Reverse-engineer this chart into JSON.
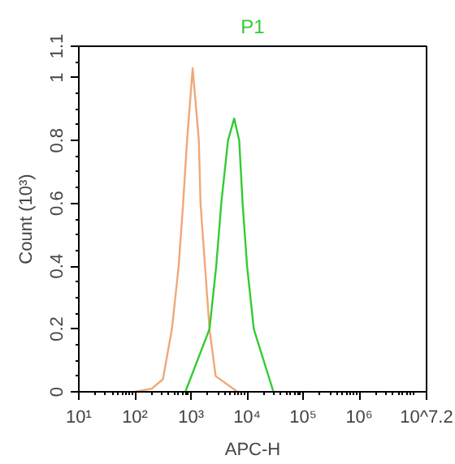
{
  "chart_data": {
    "type": "line",
    "xlabel": "APC-H",
    "ylabel": "Count (10³)",
    "log": "x",
    "xlim": [
      10,
      15848932
    ],
    "ylim": [
      0,
      1.1
    ],
    "xticks": [
      {
        "value": 10,
        "label": "10¹"
      },
      {
        "value": 100,
        "label": "10²"
      },
      {
        "value": 1000,
        "label": "10³"
      },
      {
        "value": 10000,
        "label": "10⁴"
      },
      {
        "value": 100000,
        "label": "10⁵"
      },
      {
        "value": 1000000,
        "label": "10⁶"
      },
      {
        "value": 15848932,
        "label": "10^7.2"
      }
    ],
    "yticks": [
      0,
      0.2,
      0.4,
      0.6,
      0.8,
      1,
      1.1
    ],
    "grid": false,
    "series": [
      {
        "color": "#f0a878",
        "x": [
          100,
          200,
          316,
          457,
          603,
          724,
          851,
          1072,
          1380,
          1479,
          1778,
          2138,
          2754,
          6761
        ],
        "values": [
          0,
          0.01,
          0.04,
          0.2,
          0.4,
          0.6,
          0.8,
          1.03,
          0.8,
          0.6,
          0.4,
          0.2,
          0.05,
          0
        ]
      },
      {
        "name": "P1",
        "color": "#33cc33",
        "x": [
          794,
          2138,
          2818,
          3467,
          4571,
          5888,
          7244,
          8318,
          10000,
          13183,
          29512
        ],
        "values": [
          0,
          0.2,
          0.4,
          0.6,
          0.8,
          0.87,
          0.8,
          0.6,
          0.4,
          0.2,
          0
        ]
      }
    ]
  }
}
